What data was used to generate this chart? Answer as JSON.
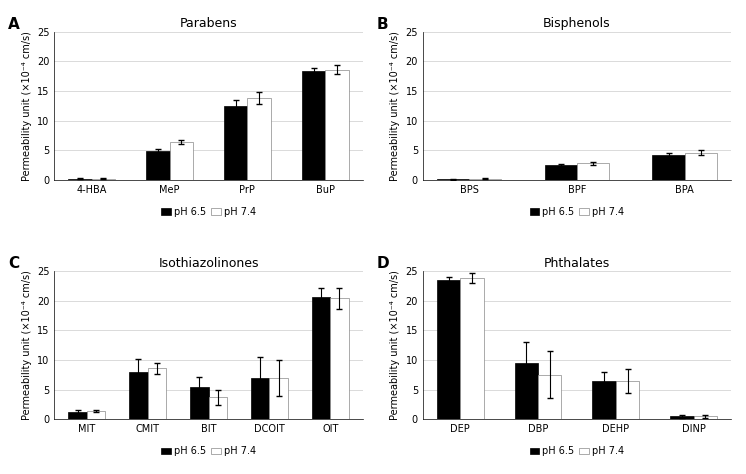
{
  "panels": [
    {
      "label": "A",
      "title": "Parabens",
      "categories": [
        "4-HBA",
        "MeP",
        "PrP",
        "BuP"
      ],
      "ph65": [
        0.2,
        4.9,
        12.5,
        18.3
      ],
      "ph74": [
        0.2,
        6.4,
        13.8,
        18.6
      ],
      "err65": [
        0.1,
        0.3,
        0.9,
        0.6
      ],
      "err74": [
        0.1,
        0.4,
        1.0,
        0.7
      ]
    },
    {
      "label": "B",
      "title": "Bisphenols",
      "categories": [
        "BPS",
        "BPF",
        "BPA"
      ],
      "ph65": [
        0.1,
        2.5,
        4.2
      ],
      "ph74": [
        0.2,
        2.8,
        4.6
      ],
      "err65": [
        0.05,
        0.2,
        0.3
      ],
      "err74": [
        0.05,
        0.3,
        0.4
      ]
    },
    {
      "label": "C",
      "title": "Isothiazolinones",
      "categories": [
        "MIT",
        "CMIT",
        "BIT",
        "DCOIT",
        "OIT"
      ],
      "ph65": [
        1.2,
        8.0,
        5.4,
        7.0,
        20.6
      ],
      "ph74": [
        1.4,
        8.6,
        3.7,
        7.0,
        20.4
      ],
      "err65": [
        0.3,
        2.2,
        1.8,
        3.5,
        1.5
      ],
      "err74": [
        0.2,
        0.9,
        1.3,
        3.0,
        1.8
      ]
    },
    {
      "label": "D",
      "title": "Phthalates",
      "categories": [
        "DEP",
        "DBP",
        "DEHP",
        "DINP"
      ],
      "ph65": [
        23.5,
        9.5,
        6.5,
        0.5
      ],
      "ph74": [
        23.8,
        7.5,
        6.5,
        0.5
      ],
      "err65": [
        0.5,
        3.5,
        1.5,
        0.3
      ],
      "err74": [
        0.8,
        4.0,
        2.0,
        0.3
      ]
    }
  ],
  "ylim": [
    0,
    25
  ],
  "yticks": [
    0,
    5,
    10,
    15,
    20,
    25
  ],
  "ylabel": "Permeability unit (×10⁻⁴ cm/s)",
  "bar_width": 0.3,
  "color_ph65": "#000000",
  "color_ph74": "#ffffff",
  "hatch_ph74": "=====",
  "edge_color_ph74": "#888888",
  "background": "#ffffff",
  "legend_ph65": "pH 6.5",
  "legend_ph74": "pH 7.4",
  "title_fontsize": 9,
  "label_fontsize": 7,
  "tick_fontsize": 7,
  "legend_fontsize": 7,
  "panel_label_fontsize": 11
}
